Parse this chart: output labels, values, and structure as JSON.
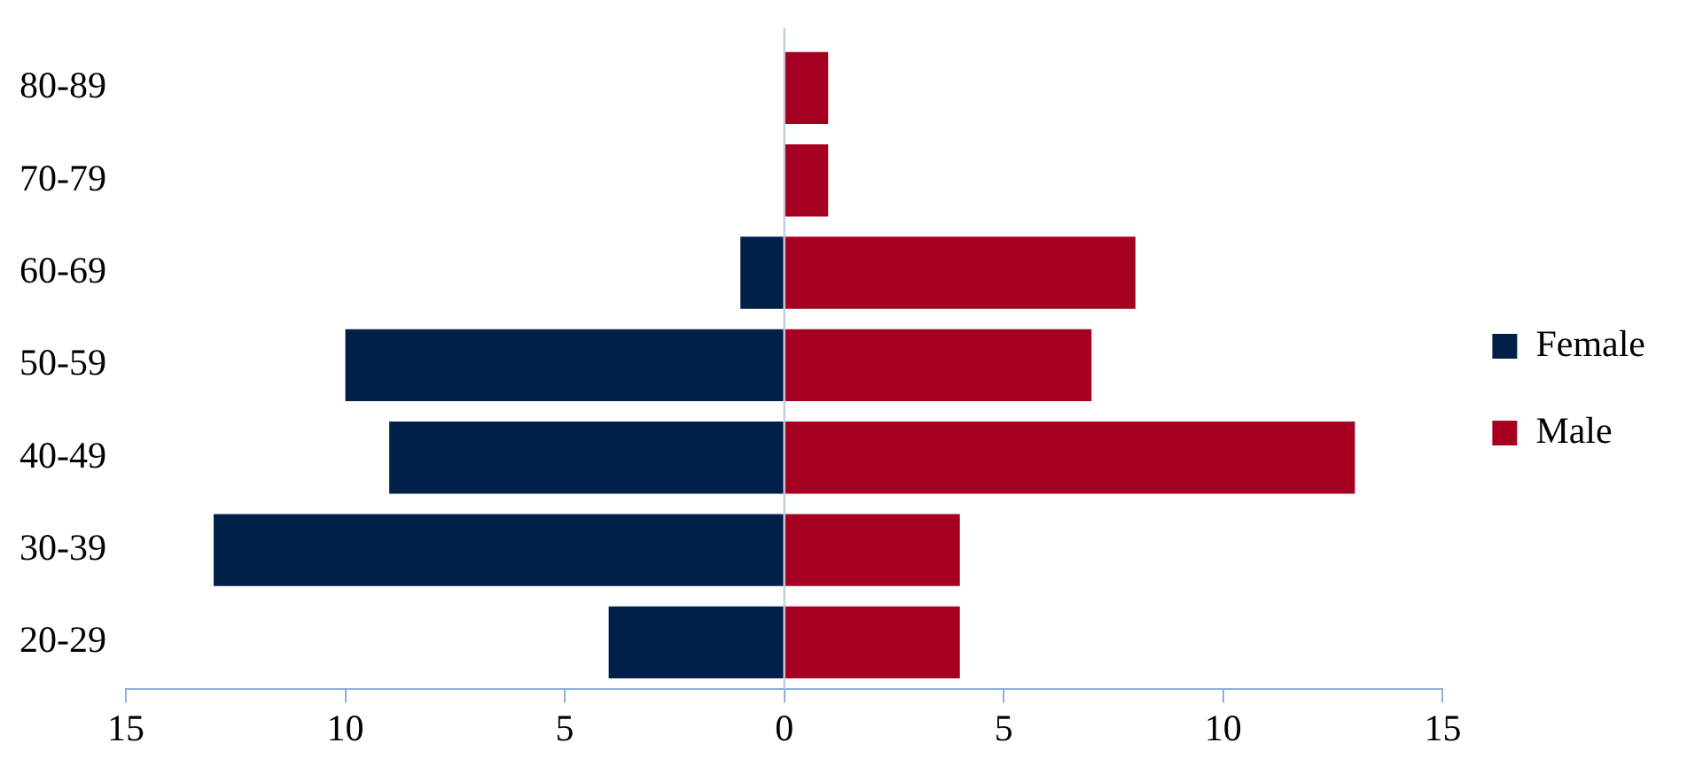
{
  "chart_data": {
    "type": "bar",
    "orientation": "horizontal",
    "stacked": true,
    "categories": [
      "80-89",
      "70-79",
      "60-69",
      "50-59",
      "40-49",
      "30-39",
      "20-29"
    ],
    "series": [
      {
        "name": "Female",
        "color": "#00204a",
        "values": [
          0,
          0,
          -1,
          -10,
          -9,
          -13,
          -4
        ]
      },
      {
        "name": "Male",
        "color": "#a50021",
        "values": [
          1,
          1,
          8,
          7,
          13,
          4,
          4
        ]
      }
    ],
    "xlim": [
      -15,
      15
    ],
    "xticks": [
      {
        "value": -15,
        "label": "15"
      },
      {
        "value": -10,
        "label": "10"
      },
      {
        "value": -5,
        "label": "5"
      },
      0,
      5,
      10,
      15
    ],
    "grid": false,
    "legend": "right",
    "ref_lines": [
      {
        "axis": "x",
        "value": 0,
        "color": "#b9c6d6"
      }
    ]
  }
}
